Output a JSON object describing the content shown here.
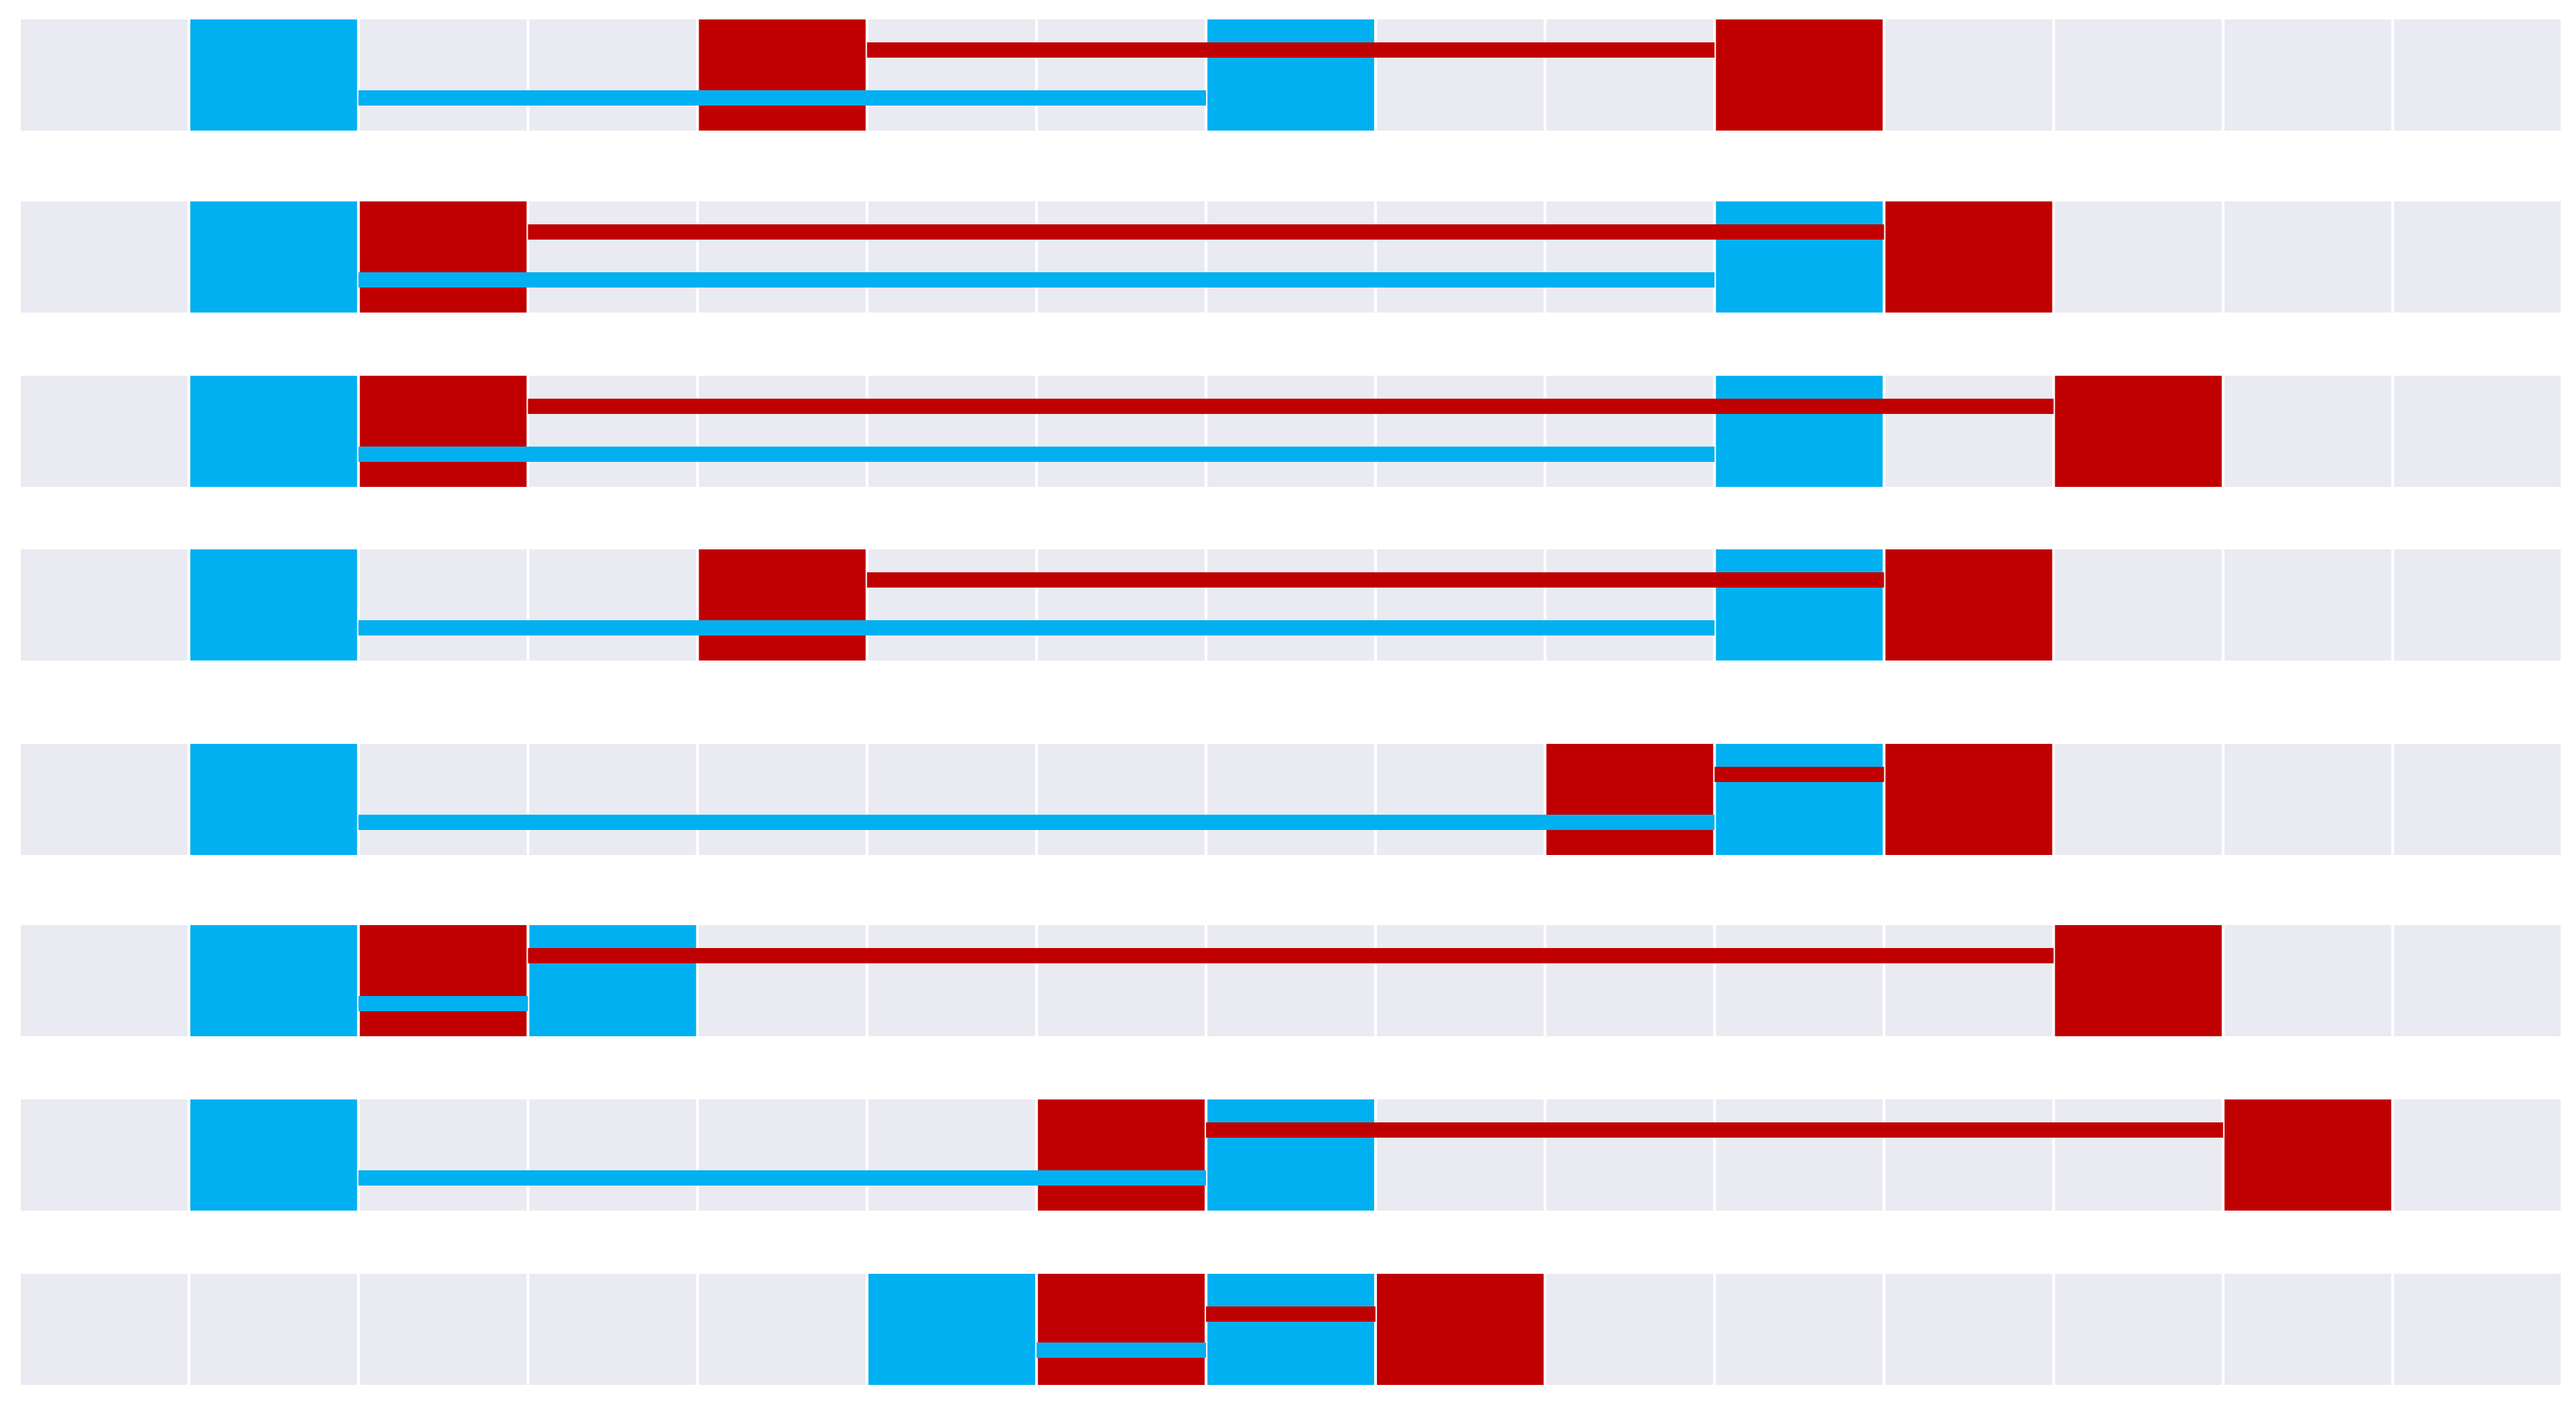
{
  "colors": {
    "background": "#ffffff",
    "track": "#eaeaf2",
    "cell_divider": "#ffffff",
    "series_a": "#00b0f0",
    "series_b": "#c00000"
  },
  "grid": {
    "columns": 15
  },
  "rows": [
    {
      "blue": {
        "start": 1,
        "end": 7
      },
      "red": {
        "start": 4,
        "end": 10
      }
    },
    {
      "blue": {
        "start": 1,
        "end": 10
      },
      "red": {
        "start": 2,
        "end": 11
      }
    },
    {
      "blue": {
        "start": 1,
        "end": 10
      },
      "red": {
        "start": 2,
        "end": 12
      }
    },
    {
      "blue": {
        "start": 1,
        "end": 10
      },
      "red": {
        "start": 4,
        "end": 11
      }
    },
    {
      "blue": {
        "start": 1,
        "end": 10
      },
      "red": {
        "start": 9,
        "end": 11
      }
    },
    {
      "blue": {
        "start": 1,
        "end": 3
      },
      "red": {
        "start": 2,
        "end": 12
      }
    },
    {
      "blue": {
        "start": 1,
        "end": 7
      },
      "red": {
        "start": 6,
        "end": 13
      }
    },
    {
      "blue": {
        "start": 5,
        "end": 7
      },
      "red": {
        "start": 6,
        "end": 8
      }
    }
  ]
}
